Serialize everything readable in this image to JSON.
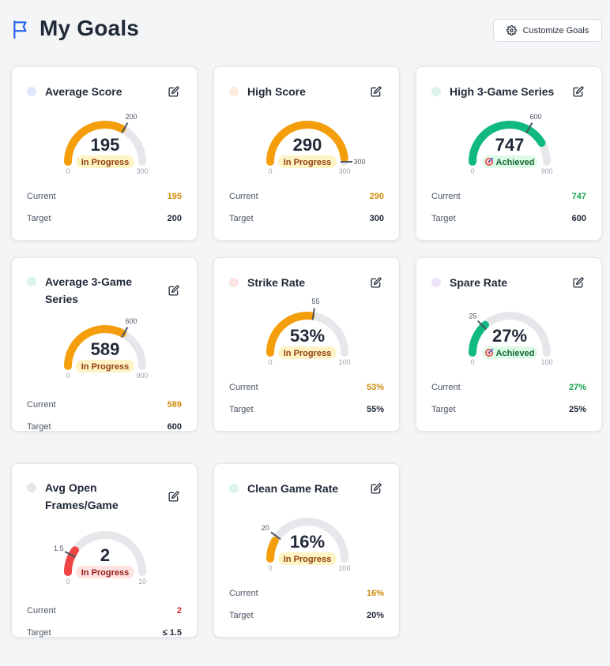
{
  "header": {
    "title": "My Goals",
    "customize_label": "Customize Goals"
  },
  "labels": {
    "current": "Current",
    "target": "Target"
  },
  "colors": {
    "in_progress": "#f59e0b",
    "achieved": "#10b981",
    "danger": "#ef4444",
    "track": "#e5e7eb"
  },
  "goals": [
    {
      "title": "Average Score",
      "dot_color": "#e0e7ff",
      "center": "195",
      "status": "In Progress",
      "min": "0",
      "max": "300",
      "target_label": "200",
      "current": "195",
      "target": "200",
      "fill": 0.65,
      "target_pos": 0.6667,
      "current_color": "#d08a0c",
      "arc_color": "#f59e0b"
    },
    {
      "title": "High Score",
      "dot_color": "#fdebdc",
      "center": "290",
      "status": "In Progress",
      "min": "0",
      "max": "300",
      "target_label": "300",
      "current": "290",
      "target": "300",
      "fill": 0.9667,
      "target_pos": 1.0,
      "current_color": "#d08a0c",
      "arc_color": "#f59e0b"
    },
    {
      "title": "High 3-Game Series",
      "dot_color": "#dcf3ea",
      "center": "747",
      "status": "Achieved",
      "min": "0",
      "max": "900",
      "target_label": "600",
      "current": "747",
      "target": "600",
      "fill": 0.83,
      "target_pos": 0.6667,
      "current_color": "#16a34a",
      "arc_color": "#10b981"
    },
    {
      "title": "Average 3-Game Series",
      "dot_color": "#dcf3ea",
      "center": "589",
      "status": "In Progress",
      "min": "0",
      "max": "900",
      "target_label": "600",
      "current": "589",
      "target": "600",
      "fill": 0.6544,
      "target_pos": 0.6667,
      "current_color": "#d08a0c",
      "arc_color": "#f59e0b"
    },
    {
      "title": "Strike Rate",
      "dot_color": "#fde2e2",
      "center": "53%",
      "status": "In Progress",
      "min": "0",
      "max": "100",
      "target_label": "55",
      "current": "53%",
      "target": "55%",
      "fill": 0.53,
      "target_pos": 0.55,
      "current_color": "#d08a0c",
      "arc_color": "#f59e0b"
    },
    {
      "title": "Spare Rate",
      "dot_color": "#f0e4fb",
      "center": "27%",
      "status": "Achieved",
      "min": "0",
      "max": "100",
      "target_label": "25",
      "current": "27%",
      "target": "25%",
      "fill": 0.27,
      "target_pos": 0.25,
      "current_color": "#16a34a",
      "arc_color": "#10b981"
    },
    {
      "title": "Avg Open Frames/Game",
      "dot_color": "#e5e7eb",
      "center": "2",
      "status": "In Progress",
      "min": "0",
      "max": "10",
      "target_label": "1.5",
      "current": "2",
      "target": "≤ 1.5",
      "fill": 0.2,
      "target_pos": 0.15,
      "current_color": "#dc2626",
      "arc_color": "#ef4444",
      "badge_style": "danger"
    },
    {
      "title": "Clean Game Rate",
      "dot_color": "#dcf3ea",
      "center": "16%",
      "status": "In Progress",
      "min": "0",
      "max": "100",
      "target_label": "20",
      "current": "16%",
      "target": "20%",
      "fill": 0.16,
      "target_pos": 0.2,
      "current_color": "#d08a0c",
      "arc_color": "#f59e0b"
    }
  ]
}
